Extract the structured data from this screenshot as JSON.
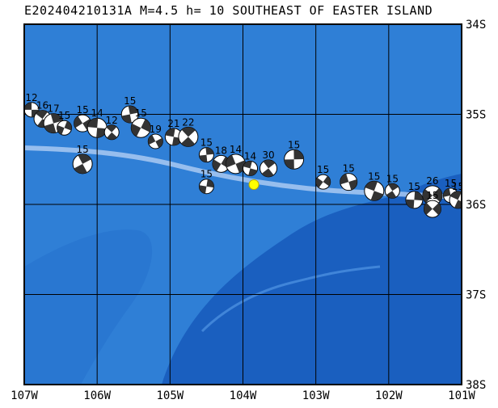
{
  "title": "E202404210131A M=4.5 h= 10 SOUTHEAST OF EASTER ISLAND",
  "colors": {
    "ocean_deep": "#1a5fbf",
    "ocean_mid": "#2f7fd6",
    "ridge": "#a9c9f2",
    "frame": "#000000",
    "epicenter": "#ffff00"
  },
  "map": {
    "lon_range": [
      -107,
      -101
    ],
    "lat_range": [
      -38,
      -34
    ],
    "lon_ticks": [
      "107W",
      "106W",
      "105W",
      "104W",
      "103W",
      "102W",
      "101W"
    ],
    "lat_ticks": [
      "34S",
      "35S",
      "36S",
      "37S",
      "38S"
    ]
  },
  "epicenter": {
    "lon": -103.85,
    "lat": -35.78
  },
  "events": [
    {
      "lon": -106.9,
      "lat": -34.95,
      "depth": "12"
    },
    {
      "lon": -106.75,
      "lat": -35.05,
      "depth": "16"
    },
    {
      "lon": -106.6,
      "lat": -35.1,
      "depth": "17"
    },
    {
      "lon": -106.45,
      "lat": -35.15,
      "depth": "15"
    },
    {
      "lon": -106.2,
      "lat": -35.1,
      "depth": "15"
    },
    {
      "lon": -106.0,
      "lat": -35.15,
      "depth": "14"
    },
    {
      "lon": -105.8,
      "lat": -35.2,
      "depth": "12"
    },
    {
      "lon": -105.55,
      "lat": -35.0,
      "depth": "15"
    },
    {
      "lon": -105.4,
      "lat": -35.15,
      "depth": "15"
    },
    {
      "lon": -105.2,
      "lat": -35.3,
      "depth": "19"
    },
    {
      "lon": -104.95,
      "lat": -35.25,
      "depth": "21"
    },
    {
      "lon": -104.75,
      "lat": -35.25,
      "depth": "22"
    },
    {
      "lon": -104.5,
      "lat": -35.45,
      "depth": "15"
    },
    {
      "lon": -104.3,
      "lat": -35.55,
      "depth": "18"
    },
    {
      "lon": -104.1,
      "lat": -35.55,
      "depth": "14"
    },
    {
      "lon": -103.9,
      "lat": -35.6,
      "depth": "14"
    },
    {
      "lon": -103.65,
      "lat": -35.6,
      "depth": "30"
    },
    {
      "lon": -103.3,
      "lat": -35.5,
      "depth": "15"
    },
    {
      "lon": -102.9,
      "lat": -35.75,
      "depth": "15"
    },
    {
      "lon": -102.55,
      "lat": -35.75,
      "depth": "15"
    },
    {
      "lon": -102.2,
      "lat": -35.85,
      "depth": "15"
    },
    {
      "lon": -101.95,
      "lat": -35.85,
      "depth": "15"
    },
    {
      "lon": -101.65,
      "lat": -35.95,
      "depth": "15"
    },
    {
      "lon": -101.4,
      "lat": -35.9,
      "depth": "26"
    },
    {
      "lon": -101.15,
      "lat": -35.9,
      "depth": "15"
    },
    {
      "lon": -101.05,
      "lat": -35.95,
      "depth": "15"
    },
    {
      "lon": -106.2,
      "lat": -35.55,
      "depth": "15"
    },
    {
      "lon": -104.5,
      "lat": -35.8,
      "depth": "15"
    },
    {
      "lon": -101.4,
      "lat": -36.05,
      "depth": "15"
    }
  ]
}
